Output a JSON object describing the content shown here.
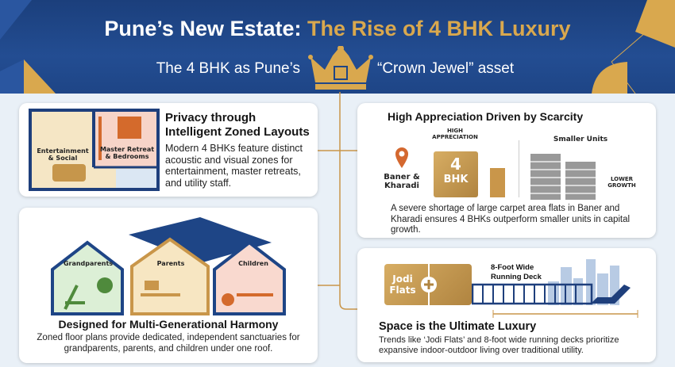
{
  "header": {
    "title_white": "Pune’s New Estate:",
    "title_gold": "The Rise of 4 BHK Luxury",
    "subtitle_left": "The 4 BHK as Pune’s",
    "subtitle_right": "“Crown Jewel” asset",
    "icon": "crown-icon"
  },
  "colors": {
    "navy": "#1e4586",
    "gold": "#d9a84e",
    "background": "#e9f0f7"
  },
  "privacy": {
    "title_line1": "Privacy through",
    "title_line2": "Intelligent Zoned Layouts",
    "body": "Modern 4 BHKs feature distinct acoustic and visual zones for entertainment, master retreats, and utility staff.",
    "zone1": "Entertainment & Social",
    "zone2": "Master Retreat & Bedrooms"
  },
  "multigen": {
    "title": "Designed for Multi-Generational Harmony",
    "body": "Zoned floor plans provide dedicated, independent sanctuaries for grandparents, parents, and children under one roof.",
    "houses": [
      "Grandparents",
      "Parents",
      "Children"
    ]
  },
  "scarcity": {
    "title": "High Appreciation Driven by Scarcity",
    "location": "Baner & Kharadi",
    "high_label": "HIGH APPRECIATION",
    "block_number": "4",
    "block_unit": "BHK",
    "smaller": "Smaller Units",
    "lower": "LOWER GROWTH",
    "body": "A severe shortage of large carpet area flats in Baner and Kharadi ensures 4 BHKs outperform smaller units in capital growth."
  },
  "space": {
    "title": "Space is the Ultimate Luxury",
    "jodi": "Jodi Flats",
    "deck": "8-Foot Wide Running Deck",
    "body": "Trends like ‘Jodi Flats’ and 8-foot wide running decks prioritize expansive indoor-outdoor living over traditional utility."
  }
}
